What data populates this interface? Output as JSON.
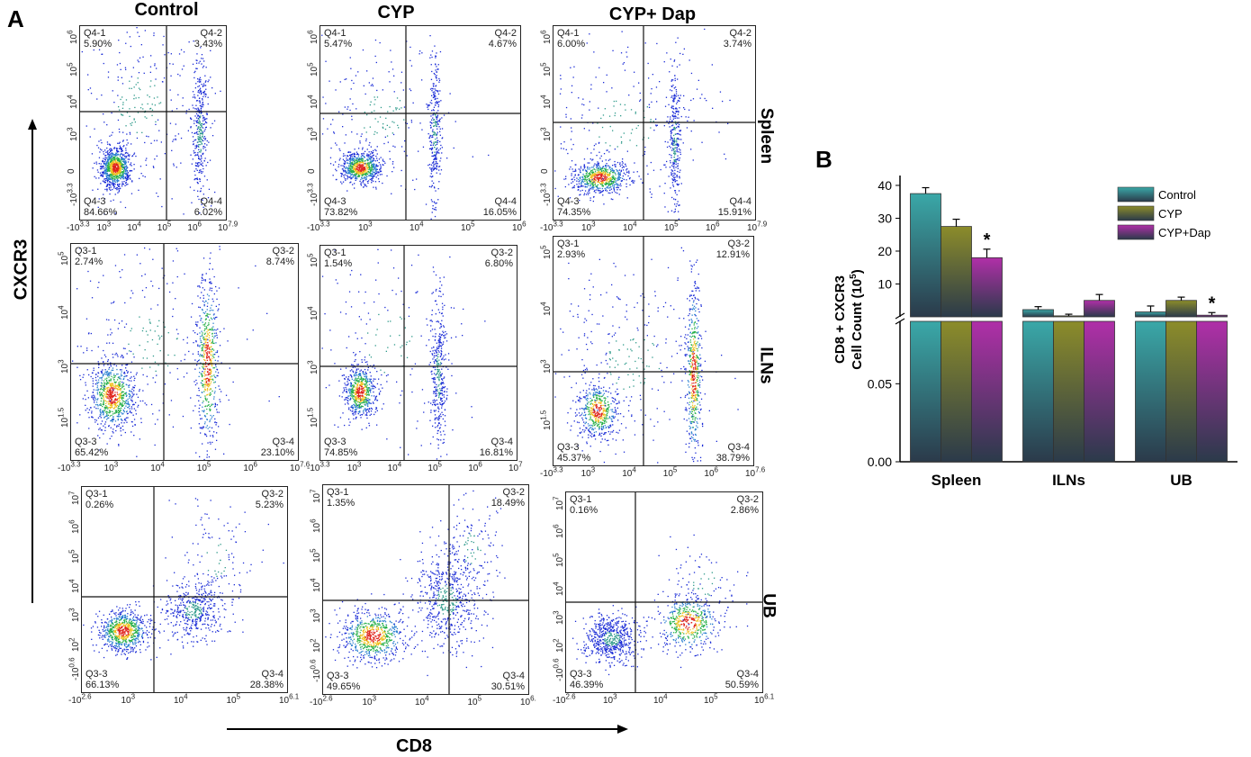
{
  "panel_a": {
    "letter": "A",
    "columns": [
      "Control",
      "CYP",
      "CYP+ Dap"
    ],
    "rows": [
      "Spleen",
      "ILNs",
      "UB"
    ],
    "y_axis_title": "CXCR3",
    "x_axis_title": "CD8",
    "tick_sets": {
      "spleen": {
        "y": [
          "10^6",
          "10^5",
          "10^4",
          "10^3",
          "0",
          "-10^3.3"
        ],
        "x": [
          "-10^3.3",
          "10^3",
          "10^4",
          "10^5",
          "10^6",
          "10^7.9"
        ]
      },
      "spleen_cyp": {
        "y": [
          "10^6",
          "10^5",
          "10^4",
          "10^3",
          "0",
          "-10^3.3"
        ],
        "x": [
          "-10^3.3",
          "10^3",
          "10^4",
          "10^5",
          "10^6"
        ]
      },
      "iln_control": {
        "y": [
          "10^5",
          "10^4",
          "10^3",
          "10^1.5"
        ],
        "x": [
          "-10^3.3",
          "10^3",
          "10^4",
          "10^5",
          "10^6",
          "10^7.6"
        ]
      },
      "iln_cyp": {
        "y": [
          "10^5",
          "10^4",
          "10^3",
          "10^1.5"
        ],
        "x": [
          "-10^3.3",
          "10^3",
          "10^4",
          "10^5",
          "10^6",
          "10^7"
        ]
      },
      "iln_dap": {
        "y": [
          "10^5",
          "10^4",
          "10^3",
          "10^1.5"
        ],
        "x": [
          "-10^3.3",
          "10^3",
          "10^4",
          "10^5",
          "10^6",
          "10^7.6"
        ]
      },
      "ub_control": {
        "y": [
          "10^7",
          "10^6",
          "10^5",
          "10^4",
          "10^3",
          "10^2",
          "-10^0.6"
        ],
        "x": [
          "-10^2.6",
          "10^3",
          "10^4",
          "10^5",
          "10^6.1"
        ]
      },
      "ub_cyp": {
        "y": [
          "10^7",
          "10^6",
          "10^5",
          "10^4",
          "10^3",
          "10^2",
          "-10^0.6"
        ],
        "x": [
          "-10^2.6",
          "10^3",
          "10^4",
          "10^5",
          "10^6."
        ]
      },
      "ub_dap": {
        "y": [
          "10^7",
          "10^6",
          "10^5",
          "10^4",
          "10^3",
          "10^2",
          "-10^0.6"
        ],
        "x": [
          "-10^2.6",
          "10^3",
          "10^4",
          "10^5",
          "10^6.1"
        ]
      }
    },
    "plots": [
      {
        "id": "spleen-control",
        "ticks": "spleen",
        "q": [
          [
            "Q4-1",
            "5.90%"
          ],
          [
            "Q4-2",
            "3.43%"
          ],
          [
            "Q4-3",
            "84.66%"
          ],
          [
            "Q4-4",
            "6.02%"
          ]
        ]
      },
      {
        "id": "spleen-cyp",
        "ticks": "spleen_cyp",
        "q": [
          [
            "Q4-1",
            "5.47%"
          ],
          [
            "Q4-2",
            "4.67%"
          ],
          [
            "Q4-3",
            "73.82%"
          ],
          [
            "Q4-4",
            "16.05%"
          ]
        ]
      },
      {
        "id": "spleen-dap",
        "ticks": "spleen",
        "q": [
          [
            "Q4-1",
            "6.00%"
          ],
          [
            "Q4-2",
            "3.74%"
          ],
          [
            "Q4-3",
            "74.35%"
          ],
          [
            "Q4-4",
            "15.91%"
          ]
        ]
      },
      {
        "id": "iln-control",
        "ticks": "iln_control",
        "q": [
          [
            "Q3-1",
            "2.74%"
          ],
          [
            "Q3-2",
            "8.74%"
          ],
          [
            "Q3-3",
            "65.42%"
          ],
          [
            "Q3-4",
            "23.10%"
          ]
        ]
      },
      {
        "id": "iln-cyp",
        "ticks": "iln_cyp",
        "q": [
          [
            "Q3-1",
            "1.54%"
          ],
          [
            "Q3-2",
            "6.80%"
          ],
          [
            "Q3-3",
            "74.85%"
          ],
          [
            "Q3-4",
            "16.81%"
          ]
        ]
      },
      {
        "id": "iln-dap",
        "ticks": "iln_dap",
        "q": [
          [
            "Q3-1",
            "2.93%"
          ],
          [
            "Q3-2",
            "12.91%"
          ],
          [
            "Q3-3",
            "45.37%"
          ],
          [
            "Q3-4",
            "38.79%"
          ]
        ]
      },
      {
        "id": "ub-control",
        "ticks": "ub_control",
        "q": [
          [
            "Q3-1",
            "0.26%"
          ],
          [
            "Q3-2",
            "5.23%"
          ],
          [
            "Q3-3",
            "66.13%"
          ],
          [
            "Q3-4",
            "28.38%"
          ]
        ]
      },
      {
        "id": "ub-cyp",
        "ticks": "ub_cyp",
        "q": [
          [
            "Q3-1",
            "1.35%"
          ],
          [
            "Q3-2",
            "18.49%"
          ],
          [
            "Q3-3",
            "49.65%"
          ],
          [
            "Q3-4",
            "30.51%"
          ]
        ]
      },
      {
        "id": "ub-dap",
        "ticks": "ub_dap",
        "q": [
          [
            "Q3-1",
            "0.16%"
          ],
          [
            "Q3-2",
            "2.86%"
          ],
          [
            "Q3-3",
            "46.39%"
          ],
          [
            "Q3-4",
            "50.59%"
          ]
        ]
      }
    ]
  },
  "panel_b": {
    "letter": "B"
  },
  "chart_data": {
    "type": "bar",
    "title": "",
    "ylabel": "CD8 + CXCR3 Cell Count (10^5)",
    "ylabel_line1": "CD8 + CXCR3",
    "ylabel_line2": "Cell Count (10",
    "ylabel_sup": "5",
    "ylabel_close": ")",
    "xlabel": "",
    "categories": [
      "Spleen",
      "ILNs",
      "UB"
    ],
    "series": [
      {
        "name": "Control",
        "values": [
          37.5,
          2.2,
          1.5
        ],
        "errors": [
          1.8,
          0.9,
          1.8
        ],
        "color": "#3aa8a8"
      },
      {
        "name": "CYP",
        "values": [
          27.5,
          0.3,
          5.0
        ],
        "errors": [
          2.2,
          0.5,
          1.0
        ],
        "color": "#8c8c2a"
      },
      {
        "name": "CYP+Dap",
        "values": [
          18.0,
          5.0,
          0.5
        ],
        "errors": [
          2.6,
          1.8,
          0.8
        ],
        "color": "#b02fa8"
      }
    ],
    "upper_ylim": [
      0,
      43
    ],
    "upper_ticks": [
      "40",
      "30",
      "20",
      "10"
    ],
    "upper_tick_values": [
      40,
      30,
      20,
      10
    ],
    "lower_ylim": [
      0,
      0.09
    ],
    "lower_ticks": [
      "0.05",
      "0.00"
    ],
    "lower_tick_values": [
      0.05,
      0.0
    ],
    "lower_fill_value": 0.09,
    "significance": [
      {
        "category": "Spleen",
        "series": "CYP+Dap",
        "marker": "*"
      },
      {
        "category": "UB",
        "series": "CYP+Dap",
        "marker": "*"
      }
    ],
    "legend_position": "top-right"
  }
}
